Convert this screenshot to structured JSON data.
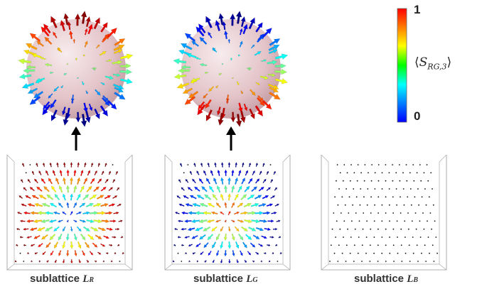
{
  "panels": [
    {
      "id": "R",
      "label_prefix": "sublattice",
      "symbol": "L",
      "subscript": "R",
      "has_sphere": true,
      "pattern": "skyrmion-red"
    },
    {
      "id": "G",
      "label_prefix": "sublattice",
      "symbol": "L",
      "subscript": "G",
      "has_sphere": true,
      "pattern": "skyrmion-blue"
    },
    {
      "id": "B",
      "label_prefix": "sublattice",
      "symbol": "L",
      "subscript": "B",
      "has_sphere": false,
      "pattern": "empty"
    }
  ],
  "colorbar": {
    "max_label": "1",
    "min_label": "0",
    "title_open": "⟨",
    "title_symbol": "S",
    "title_subscript": "RG,3",
    "title_close": "⟩",
    "colors": [
      "#ff0000",
      "#ff8000",
      "#ffff00",
      "#00ff00",
      "#00ffff",
      "#0080ff",
      "#0000ff"
    ]
  },
  "colors": {
    "sphere": "#e8c8cc",
    "frame": "#999999",
    "dot": "#111111",
    "arrow": "#000000"
  }
}
